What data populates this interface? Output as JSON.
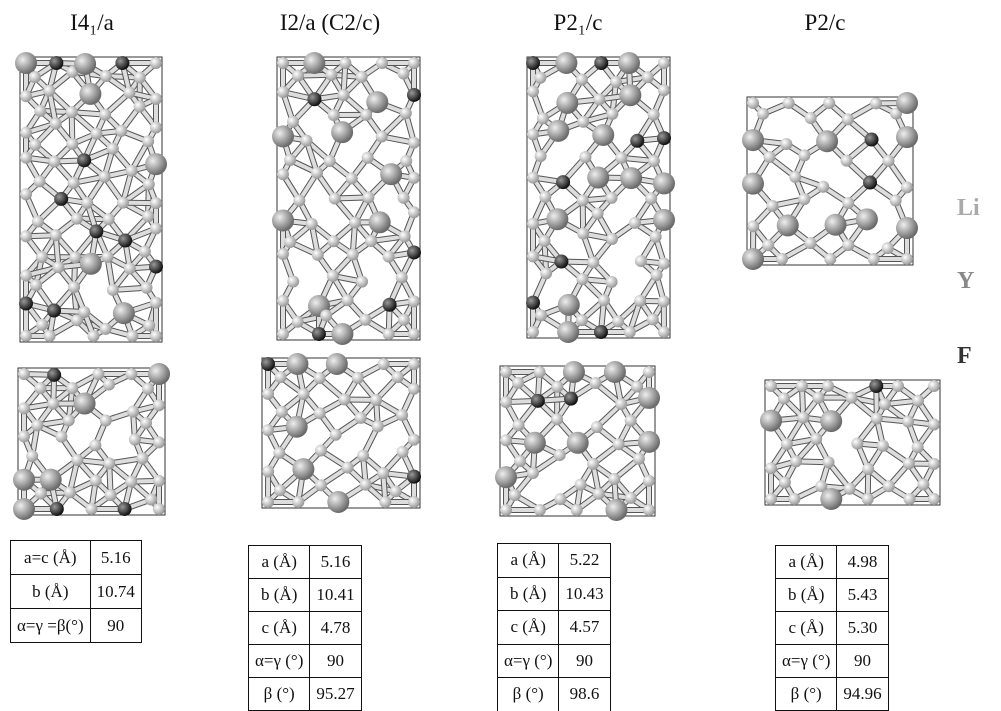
{
  "panels": [
    {
      "title": "I4₁/a",
      "table": [
        [
          "a=c (Å)",
          "5.16"
        ],
        [
          "b (Å)",
          "10.74"
        ],
        [
          "α=γ =β(°)",
          "90"
        ]
      ]
    },
    {
      "title": "I2/a (C2/c)",
      "table": [
        [
          "a (Å)",
          "5.16"
        ],
        [
          "b (Å)",
          "10.41"
        ],
        [
          "c (Å)",
          "4.78"
        ],
        [
          "α=γ (°)",
          "90"
        ],
        [
          "β (°)",
          "95.27"
        ]
      ]
    },
    {
      "title": "P2₁/c",
      "table": [
        [
          "a (Å)",
          "5.22"
        ],
        [
          "b (Å)",
          "10.43"
        ],
        [
          "c (Å)",
          "4.57"
        ],
        [
          "α=γ (°)",
          "90"
        ],
        [
          "β (°)",
          "98.6"
        ]
      ]
    },
    {
      "title": "P2/c",
      "table": [
        [
          "a (Å)",
          "4.98"
        ],
        [
          "b (Å)",
          "5.43"
        ],
        [
          "c (Å)",
          "5.30"
        ],
        [
          "α=γ (°)",
          "90"
        ],
        [
          "β (°)",
          "94.96"
        ]
      ]
    }
  ],
  "legend": [
    "Li",
    "Y",
    "F"
  ]
}
